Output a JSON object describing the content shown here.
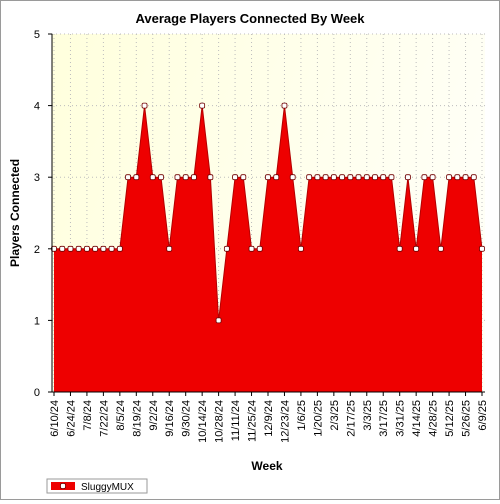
{
  "chart_data": {
    "type": "area",
    "title": "Average Players Connected By Week",
    "xlabel": "Week",
    "ylabel": "Players Connected",
    "ylim": [
      0,
      5
    ],
    "yticks": [
      0,
      1,
      2,
      3,
      4,
      5
    ],
    "grid": true,
    "legend": "bottom-left",
    "colors": {
      "fill": "#ee0000",
      "line": "#b40000",
      "plot_background_start": "#ffffdd",
      "plot_background_end": "#fffff6",
      "grid": "#bdbdbd"
    },
    "x": [
      "6/10/24",
      "6/17/24",
      "6/24/24",
      "7/1/24",
      "7/8/24",
      "7/15/24",
      "7/22/24",
      "7/29/24",
      "8/5/24",
      "8/12/24",
      "8/19/24",
      "8/26/24",
      "9/2/24",
      "9/9/24",
      "9/16/24",
      "9/23/24",
      "9/30/24",
      "10/7/24",
      "10/14/24",
      "10/21/24",
      "10/28/24",
      "11/4/24",
      "11/11/24",
      "11/18/24",
      "11/25/24",
      "12/2/24",
      "12/9/24",
      "12/16/24",
      "12/23/24",
      "12/30/24",
      "1/6/25",
      "1/13/25",
      "1/20/25",
      "1/27/25",
      "2/3/25",
      "2/10/25",
      "2/17/25",
      "2/24/25",
      "3/3/25",
      "3/10/25",
      "3/17/25",
      "3/24/25",
      "3/31/25",
      "4/7/25",
      "4/14/25",
      "4/21/25",
      "4/28/25",
      "5/5/25",
      "5/12/25",
      "5/19/25",
      "5/26/25",
      "6/2/25",
      "6/9/25"
    ],
    "x_tick_labels": [
      "6/10/24",
      "6/24/24",
      "7/8/24",
      "7/22/24",
      "8/5/24",
      "8/19/24",
      "9/2/24",
      "9/16/24",
      "9/30/24",
      "10/14/24",
      "10/28/24",
      "11/11/24",
      "11/25/24",
      "12/9/24",
      "12/23/24",
      "1/6/25",
      "1/20/25",
      "2/3/25",
      "2/17/25",
      "3/3/25",
      "3/17/25",
      "3/31/25",
      "4/14/25",
      "4/28/25",
      "5/12/25",
      "5/26/25",
      "6/9/25"
    ],
    "series": [
      {
        "name": "SluggyMUX",
        "values": [
          2,
          2,
          2,
          2,
          2,
          2,
          2,
          2,
          2,
          3,
          3,
          4,
          3,
          3,
          2,
          3,
          3,
          3,
          4,
          3,
          1,
          2,
          3,
          3,
          2,
          2,
          3,
          3,
          4,
          3,
          2,
          3,
          3,
          3,
          3,
          3,
          3,
          3,
          3,
          3,
          3,
          3,
          2,
          3,
          2,
          3,
          3,
          2,
          3,
          3,
          3,
          3,
          2
        ]
      }
    ]
  }
}
